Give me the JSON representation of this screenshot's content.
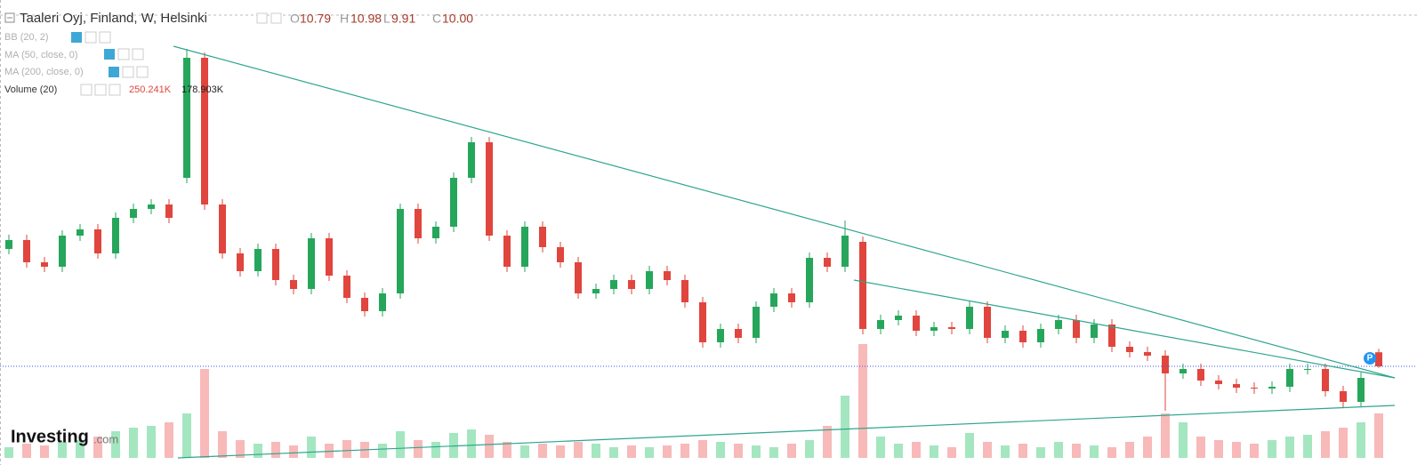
{
  "chart_data": {
    "type": "candlestick",
    "title": "Taaleri Oyj, Finland, W, Helsinki",
    "ohlc_legend": [
      {
        "key": "O",
        "value": "10.79"
      },
      {
        "key": "H",
        "value": "10.98"
      },
      {
        "key": "L",
        "value": "9.91"
      },
      {
        "key": "C",
        "value": "10.00"
      }
    ],
    "indicators": [
      "BB (20, 2)",
      "MA (50, close, 0)",
      "MA (200, close, 0)"
    ],
    "volume_label": "Volume (20)",
    "volume_readouts": [
      "250.241K",
      "178.903K"
    ],
    "open": [
      16.6,
      17.1,
      15.85,
      15.6,
      17.35,
      17.7,
      16.35,
      18.35,
      18.85,
      19.1,
      20.6,
      27.35,
      19.1,
      16.35,
      15.35,
      16.6,
      14.85,
      14.35,
      17.2,
      15.1,
      13.85,
      13.1,
      14.1,
      18.85,
      17.2,
      17.85,
      20.6,
      22.6,
      17.35,
      15.6,
      17.85,
      16.7,
      15.85,
      14.1,
      14.35,
      14.85,
      14.35,
      15.35,
      14.85,
      13.6,
      11.35,
      12.1,
      11.6,
      13.35,
      14.1,
      13.6,
      16.1,
      15.6,
      17.0,
      12.1,
      12.6,
      12.85,
      12.0,
      12.2,
      12.1,
      13.35,
      11.6,
      12.0,
      11.35,
      12.1,
      12.6,
      11.6,
      12.35,
      11.1,
      10.8,
      10.6,
      9.6,
      9.85,
      9.2,
      9.0,
      8.8,
      8.75,
      8.85,
      9.85,
      9.85,
      8.6,
      8.0,
      10.79
    ],
    "high": [
      17.4,
      17.4,
      16.15,
      17.65,
      18.0,
      18.0,
      18.65,
      19.15,
      19.4,
      19.4,
      27.85,
      27.65,
      19.4,
      16.65,
      16.9,
      16.9,
      15.15,
      17.5,
      17.5,
      15.4,
      14.15,
      14.4,
      19.15,
      19.15,
      18.15,
      20.9,
      22.9,
      22.9,
      17.65,
      18.15,
      18.15,
      17.0,
      16.15,
      14.65,
      15.15,
      15.15,
      15.65,
      15.65,
      15.15,
      13.9,
      12.4,
      12.4,
      13.65,
      14.4,
      14.4,
      16.4,
      16.4,
      18.2,
      17.3,
      12.9,
      13.15,
      13.15,
      12.5,
      12.5,
      13.65,
      13.65,
      12.3,
      12.3,
      12.4,
      12.9,
      12.9,
      12.65,
      12.65,
      11.4,
      11.1,
      10.9,
      10.15,
      10.15,
      9.5,
      9.3,
      9.1,
      9.15,
      10.15,
      10.15,
      10.15,
      8.9,
      9.65,
      10.98
    ],
    "low": [
      16.3,
      15.55,
      15.3,
      15.3,
      17.05,
      16.05,
      16.05,
      18.05,
      18.55,
      18.05,
      20.3,
      18.8,
      16.05,
      15.05,
      15.05,
      14.55,
      14.05,
      14.05,
      14.8,
      13.55,
      12.8,
      12.8,
      13.8,
      16.9,
      16.9,
      17.55,
      20.3,
      17.05,
      15.3,
      15.3,
      16.4,
      15.55,
      13.8,
      13.8,
      14.05,
      14.05,
      14.05,
      14.55,
      13.3,
      11.05,
      11.05,
      11.3,
      11.3,
      13.05,
      13.3,
      13.3,
      15.3,
      15.3,
      11.8,
      11.8,
      12.3,
      11.7,
      11.7,
      11.8,
      11.8,
      11.3,
      11.3,
      11.05,
      11.05,
      11.8,
      11.3,
      11.3,
      10.8,
      10.5,
      10.3,
      7.5,
      9.3,
      8.9,
      8.7,
      8.5,
      8.45,
      8.45,
      8.55,
      9.55,
      8.3,
      7.7,
      7.7,
      9.91
    ],
    "close": [
      17.1,
      15.85,
      15.6,
      17.35,
      17.7,
      16.35,
      18.35,
      18.85,
      19.1,
      18.35,
      27.35,
      19.1,
      16.35,
      15.35,
      16.6,
      14.85,
      14.35,
      17.2,
      15.1,
      13.85,
      13.1,
      14.1,
      18.85,
      17.2,
      17.85,
      20.6,
      22.6,
      17.35,
      15.6,
      17.85,
      16.7,
      15.85,
      14.1,
      14.35,
      14.85,
      14.35,
      15.35,
      14.85,
      13.6,
      11.35,
      12.1,
      11.6,
      13.35,
      14.1,
      13.6,
      16.1,
      15.6,
      17.35,
      12.1,
      12.6,
      12.85,
      12.0,
      12.2,
      12.1,
      13.35,
      11.6,
      12.0,
      11.35,
      12.1,
      12.6,
      11.6,
      12.35,
      11.1,
      10.8,
      10.6,
      9.6,
      9.85,
      9.2,
      9.0,
      8.8,
      8.75,
      8.85,
      9.85,
      9.85,
      8.6,
      8.0,
      9.35,
      10.0
    ],
    "volume": [
      60,
      80,
      70,
      90,
      100,
      120,
      150,
      170,
      180,
      200,
      250,
      500,
      150,
      100,
      80,
      90,
      70,
      120,
      80,
      100,
      90,
      80,
      150,
      100,
      90,
      140,
      160,
      130,
      90,
      70,
      80,
      70,
      90,
      80,
      60,
      70,
      60,
      70,
      80,
      100,
      90,
      80,
      70,
      60,
      80,
      100,
      180,
      350,
      640,
      120,
      80,
      90,
      70,
      60,
      140,
      90,
      70,
      80,
      60,
      90,
      80,
      70,
      60,
      90,
      120,
      250,
      200,
      120,
      100,
      90,
      80,
      100,
      120,
      130,
      150,
      170,
      200,
      250.241
    ],
    "ylim": [
      4.85,
      30.6
    ],
    "volume_ylim": [
      0,
      1000
    ],
    "up_color": "#26a65b",
    "down_color": "#e0453e",
    "up_volume_color": "#a4e6c0",
    "down_volume_color": "#f8b9b9",
    "marker": "P",
    "logo": "Investing",
    "logo_suffix": ".com"
  }
}
